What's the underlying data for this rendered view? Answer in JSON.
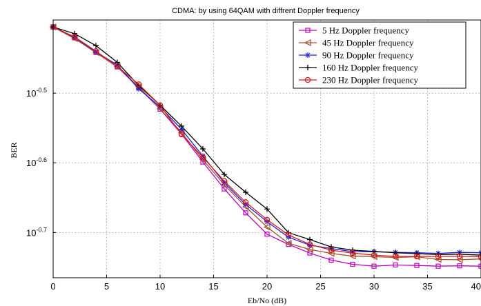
{
  "chart_data": {
    "type": "line",
    "title": "CDMA: by using 64QAM with diffrent Doppler frequency",
    "xlabel": "Eb/No (dB)",
    "ylabel": "BER",
    "xlim": [
      0,
      40
    ],
    "ylim_log10": [
      -0.765,
      -0.395
    ],
    "yscale": "log",
    "grid": true,
    "legend_position": "top-right",
    "x_ticks": [
      0,
      5,
      10,
      15,
      20,
      25,
      30,
      35,
      40
    ],
    "y_ticks": [
      {
        "base": "10",
        "exp": "-0.5",
        "value": 0.3162
      },
      {
        "base": "10",
        "exp": "-0.6",
        "value": 0.2512
      },
      {
        "base": "10",
        "exp": "-0.7",
        "value": 0.1995
      }
    ],
    "x": [
      0,
      2,
      4,
      6,
      8,
      10,
      12,
      14,
      16,
      18,
      20,
      22,
      24,
      26,
      28,
      30,
      32,
      34,
      36,
      38,
      40
    ],
    "series": [
      {
        "name": "5 Hz Doppler frequency",
        "color": "#c000c0",
        "marker": "square",
        "values": [
          0.3935,
          0.3796,
          0.3617,
          0.3448,
          0.3221,
          0.2999,
          0.2762,
          0.2518,
          0.2304,
          0.2129,
          0.1984,
          0.1918,
          0.1864,
          0.1821,
          0.1796,
          0.1785,
          0.1792,
          0.1789,
          0.1785,
          0.1787,
          0.1785
        ]
      },
      {
        "name": "45 Hz Doppler frequency",
        "color": "#a0522d",
        "marker": "triangle-left",
        "values": [
          0.3935,
          0.3787,
          0.3616,
          0.3452,
          0.3229,
          0.3003,
          0.2776,
          0.2538,
          0.2337,
          0.2172,
          0.2031,
          0.1925,
          0.1886,
          0.1862,
          0.1845,
          0.1842,
          0.1837,
          0.1841,
          0.1825,
          0.1823,
          0.1828
        ]
      },
      {
        "name": "90 Hz Doppler frequency",
        "color": "#1f1fd8",
        "marker": "star",
        "values": [
          0.3935,
          0.3806,
          0.3624,
          0.3471,
          0.3207,
          0.3023,
          0.2806,
          0.2568,
          0.2352,
          0.2189,
          0.2068,
          0.1964,
          0.1913,
          0.1892,
          0.1873,
          0.1872,
          0.1868,
          0.1866,
          0.1862,
          0.1868,
          0.1866
        ]
      },
      {
        "name": "160 Hz Doppler frequency",
        "color": "#000000",
        "marker": "plus",
        "values": [
          0.3935,
          0.385,
          0.37,
          0.3501,
          0.3242,
          0.3039,
          0.2836,
          0.263,
          0.2417,
          0.2279,
          0.2156,
          0.1994,
          0.1949,
          0.1902,
          0.1882,
          0.1874,
          0.1866,
          0.186,
          0.1855,
          0.1857,
          0.1851
        ]
      },
      {
        "name": "230 Hz Doppler frequency",
        "color": "#d81b1b",
        "marker": "circle",
        "values": [
          0.3935,
          0.3809,
          0.3634,
          0.3455,
          0.3256,
          0.3038,
          0.2759,
          0.2559,
          0.2365,
          0.2205,
          0.2081,
          0.1979,
          0.1918,
          0.1882,
          0.1864,
          0.1851,
          0.1843,
          0.1843,
          0.1843,
          0.1844,
          0.1841
        ]
      }
    ]
  }
}
